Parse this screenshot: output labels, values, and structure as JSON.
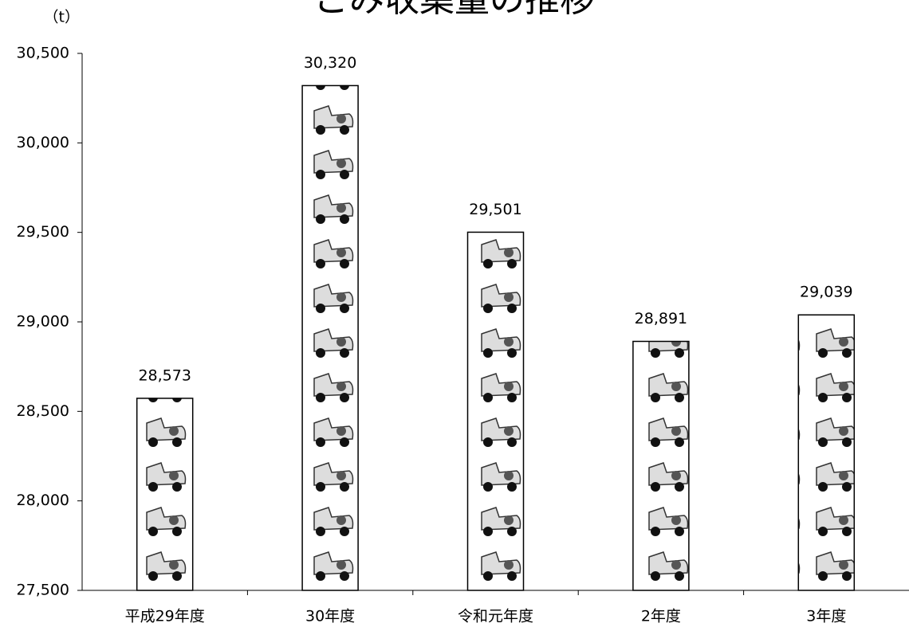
{
  "chart_data": {
    "type": "bar",
    "title": "ごみ収集量の推移",
    "y_unit": "（t）",
    "categories": [
      "平成29年度",
      "30年度",
      "令和元年度",
      "2年度",
      "3年度"
    ],
    "values": [
      28573,
      30320,
      29501,
      28891,
      29039
    ],
    "value_labels": [
      "28,573",
      "30,320",
      "29,501",
      "28,891",
      "29,039"
    ],
    "color": "#ffffff",
    "ylim": [
      27500,
      30500
    ],
    "yticks": [
      {
        "value": 27500,
        "label": "27,500"
      },
      {
        "value": 28000,
        "label": "28,000"
      },
      {
        "value": 28500,
        "label": "28,500"
      },
      {
        "value": 29000,
        "label": "29,000"
      },
      {
        "value": 29500,
        "label": "29,500"
      },
      {
        "value": 30000,
        "label": "30,000"
      },
      {
        "value": 30500,
        "label": "30,500"
      }
    ],
    "grid": false
  }
}
